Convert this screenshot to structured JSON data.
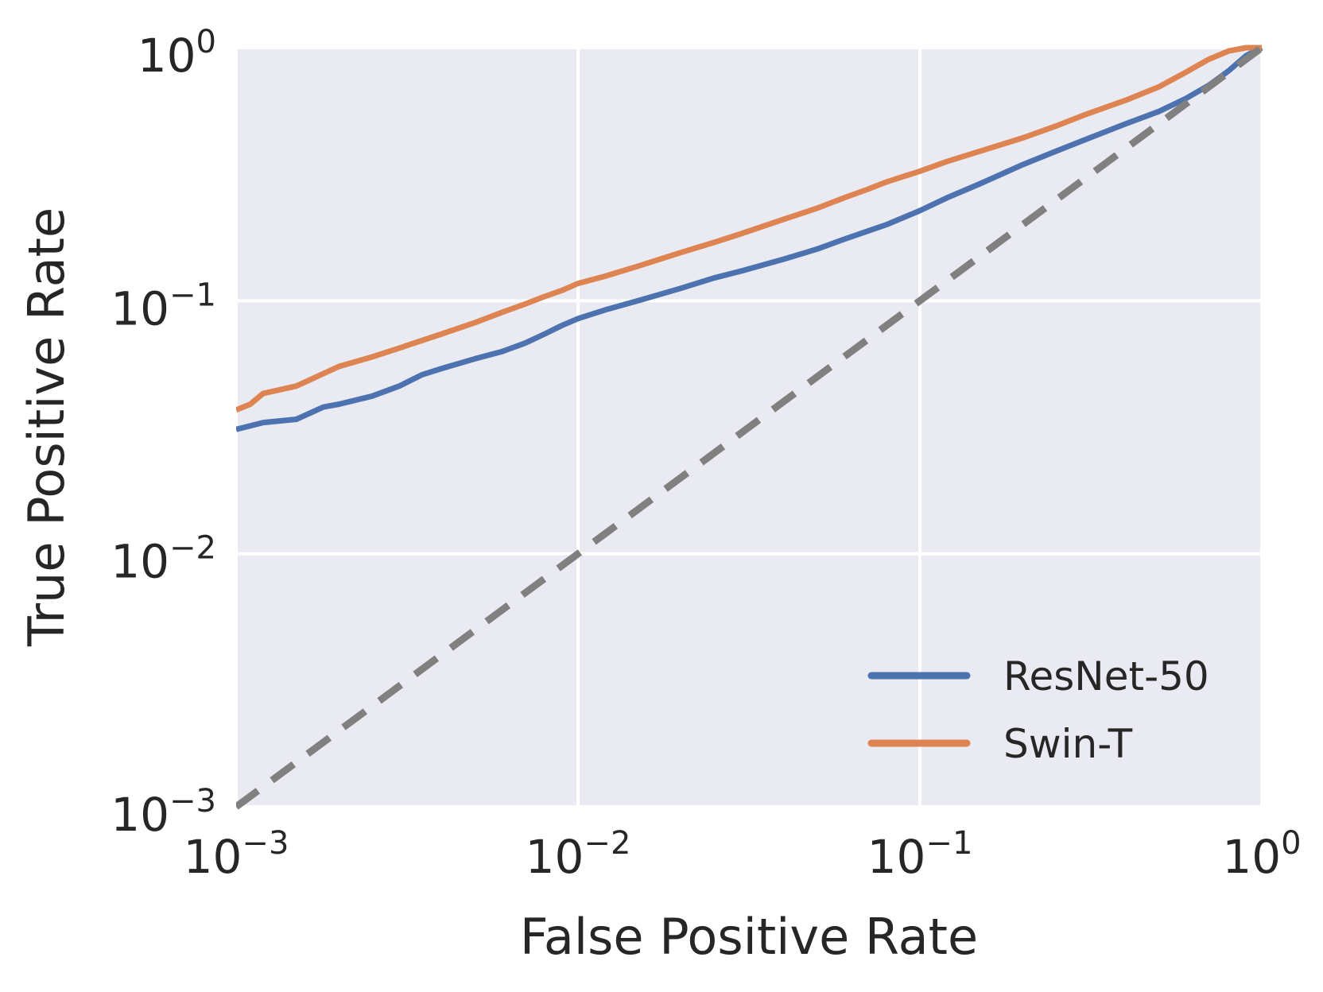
{
  "chart_data": {
    "type": "line",
    "xlabel": "False Positive Rate",
    "ylabel": "True Positive Rate",
    "xscale": "log",
    "yscale": "log",
    "xlim": [
      0.001,
      1
    ],
    "ylim": [
      0.001,
      1
    ],
    "grid": true,
    "legend_position": "lower-right",
    "background_color": "#eaeaf2",
    "x_ticks": [
      {
        "value": 0.001,
        "base": "10",
        "exp": "−3"
      },
      {
        "value": 0.01,
        "base": "10",
        "exp": "−2"
      },
      {
        "value": 0.1,
        "base": "10",
        "exp": "−1"
      },
      {
        "value": 1,
        "base": "10",
        "exp": "0"
      }
    ],
    "y_ticks": [
      {
        "value": 0.001,
        "base": "10",
        "exp": "−3"
      },
      {
        "value": 0.01,
        "base": "10",
        "exp": "−2"
      },
      {
        "value": 0.1,
        "base": "10",
        "exp": "−1"
      },
      {
        "value": 1,
        "base": "10",
        "exp": "0"
      }
    ],
    "series": [
      {
        "name": "ResNet-50",
        "color": "#4c72b0",
        "x": [
          0.001,
          0.0012,
          0.0015,
          0.0018,
          0.002,
          0.0025,
          0.003,
          0.0035,
          0.004,
          0.005,
          0.006,
          0.007,
          0.008,
          0.009,
          0.01,
          0.012,
          0.015,
          0.02,
          0.025,
          0.03,
          0.04,
          0.05,
          0.06,
          0.07,
          0.08,
          0.1,
          0.12,
          0.15,
          0.2,
          0.25,
          0.3,
          0.4,
          0.5,
          0.6,
          0.7,
          0.8,
          0.9,
          1.0
        ],
        "y": [
          0.031,
          0.033,
          0.034,
          0.038,
          0.039,
          0.042,
          0.046,
          0.051,
          0.054,
          0.059,
          0.063,
          0.068,
          0.074,
          0.08,
          0.085,
          0.092,
          0.1,
          0.112,
          0.123,
          0.131,
          0.146,
          0.16,
          0.175,
          0.188,
          0.2,
          0.227,
          0.255,
          0.29,
          0.345,
          0.39,
          0.43,
          0.5,
          0.56,
          0.63,
          0.71,
          0.81,
          0.93,
          1.0
        ]
      },
      {
        "name": "Swin-T",
        "color": "#dd8452",
        "x": [
          0.001,
          0.0011,
          0.0012,
          0.0015,
          0.002,
          0.0025,
          0.003,
          0.004,
          0.005,
          0.006,
          0.007,
          0.008,
          0.009,
          0.01,
          0.012,
          0.015,
          0.02,
          0.025,
          0.03,
          0.04,
          0.05,
          0.06,
          0.07,
          0.08,
          0.1,
          0.12,
          0.15,
          0.2,
          0.25,
          0.3,
          0.4,
          0.5,
          0.6,
          0.7,
          0.8,
          0.9,
          1.0
        ],
        "y": [
          0.037,
          0.039,
          0.043,
          0.046,
          0.055,
          0.06,
          0.065,
          0.074,
          0.082,
          0.09,
          0.097,
          0.104,
          0.11,
          0.117,
          0.125,
          0.137,
          0.155,
          0.17,
          0.184,
          0.21,
          0.232,
          0.255,
          0.275,
          0.295,
          0.325,
          0.355,
          0.39,
          0.44,
          0.49,
          0.54,
          0.62,
          0.7,
          0.8,
          0.9,
          0.97,
          1.0,
          1.0
        ]
      },
      {
        "color": "#808080",
        "style": "dashed",
        "x": [
          0.001,
          1
        ],
        "y": [
          0.001,
          1
        ]
      }
    ]
  }
}
